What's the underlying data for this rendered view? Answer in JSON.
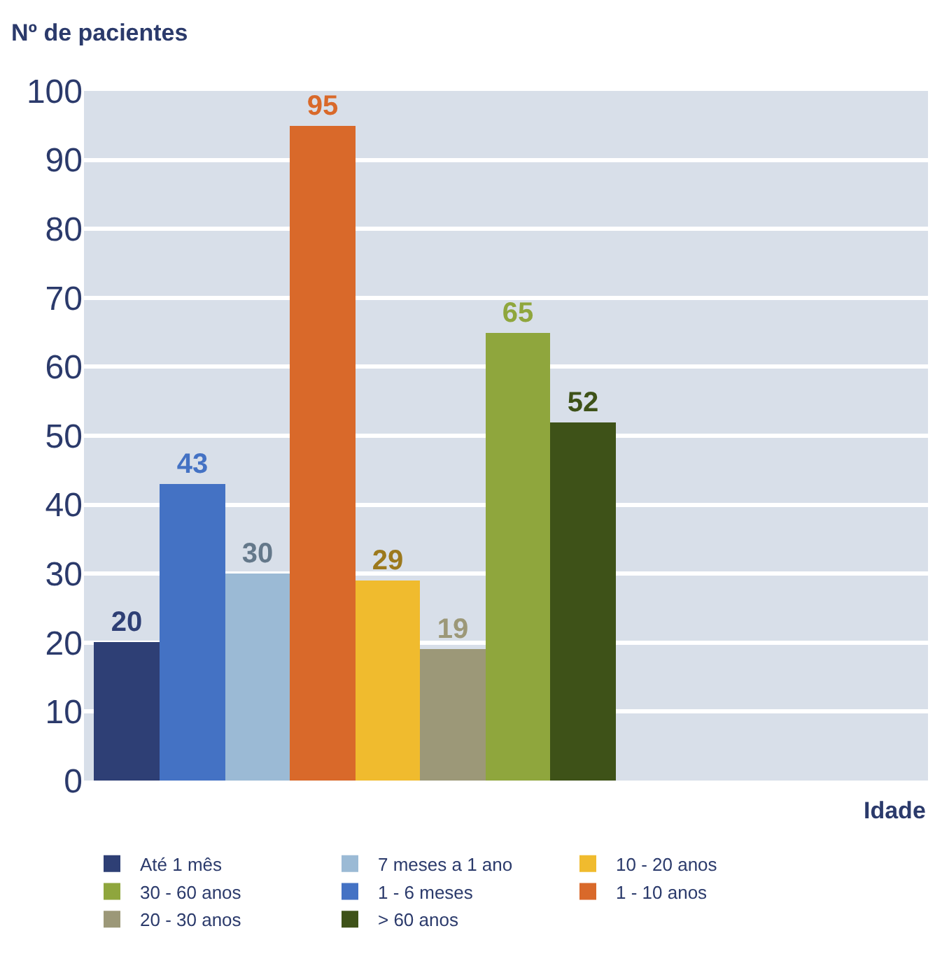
{
  "chart_data": {
    "type": "bar",
    "ylabel": "Nº de pacientes",
    "xlabel": "Idade",
    "categories": [
      null
    ],
    "series": [
      {
        "name": "Até 1 mês",
        "color": "#2e3f75",
        "values": [
          20
        ]
      },
      {
        "name": "1 - 6 meses",
        "color": "#4472c4",
        "values": [
          43
        ]
      },
      {
        "name": "7 meses a 1 ano",
        "color": "#9bbad5",
        "values": [
          30
        ]
      },
      {
        "name": "1 - 10 anos",
        "color": "#d9692a",
        "values": [
          95
        ]
      },
      {
        "name": "10 - 20 anos",
        "color": "#f0bb2e",
        "values": [
          29
        ]
      },
      {
        "name": "20 - 30 anos",
        "color": "#9c9878",
        "values": [
          19
        ]
      },
      {
        "name": "30 - 60 anos",
        "color": "#8fa63d",
        "values": [
          65
        ]
      },
      {
        "name": "> 60 anos",
        "color": "#3e5218",
        "values": [
          52
        ]
      }
    ],
    "ylim": [
      0,
      100
    ],
    "yticks": [
      0,
      10,
      20,
      30,
      40,
      50,
      60,
      70,
      80,
      90,
      100
    ],
    "grid": "y",
    "data_labels": true,
    "legend": "bottom"
  }
}
